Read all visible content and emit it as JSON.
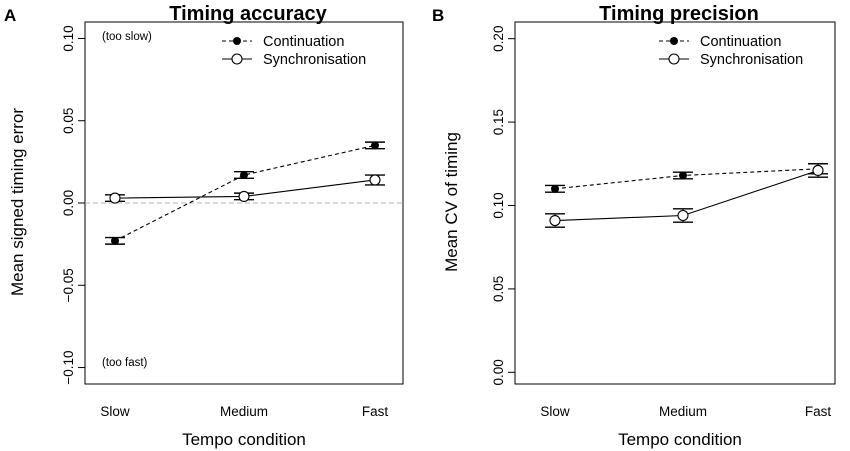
{
  "chart_data": [
    {
      "panel": "A",
      "type": "line",
      "title": "Timing accuracy",
      "xlabel": "Tempo condition",
      "ylabel": "Mean signed timing error",
      "categories": [
        "Slow",
        "Medium",
        "Fast"
      ],
      "ylim": [
        -0.11,
        0.11
      ],
      "yticks": [
        -0.1,
        -0.05,
        0.0,
        0.05,
        0.1
      ],
      "ytick_labels": [
        "−0.10",
        "−0.05",
        "0.00",
        "0.05",
        "0.10"
      ],
      "reference_line": 0.0,
      "annotations": {
        "top": "(too slow)",
        "bottom": "(too fast)"
      },
      "legend_position": "top-right",
      "series": [
        {
          "name": "Continuation",
          "style": "dashed",
          "marker": "filled",
          "values": [
            -0.023,
            0.017,
            0.035
          ],
          "errors": [
            0.002,
            0.002,
            0.002
          ]
        },
        {
          "name": "Synchronisation",
          "style": "solid",
          "marker": "open",
          "values": [
            0.003,
            0.004,
            0.014
          ],
          "errors": [
            0.002,
            0.002,
            0.003
          ]
        }
      ]
    },
    {
      "panel": "B",
      "type": "line",
      "title": "Timing precision",
      "xlabel": "Tempo condition",
      "ylabel": "Mean CV  of timing",
      "categories": [
        "Slow",
        "Medium",
        "Fast"
      ],
      "ylim": [
        -0.007,
        0.21
      ],
      "yticks": [
        0.0,
        0.05,
        0.1,
        0.15,
        0.2
      ],
      "ytick_labels": [
        "0.00",
        "0.05",
        "0.10",
        "0.15",
        "0.20"
      ],
      "legend_position": "top-right",
      "series": [
        {
          "name": "Continuation",
          "style": "dashed",
          "marker": "filled",
          "values": [
            0.11,
            0.118,
            0.122
          ],
          "errors": [
            0.002,
            0.002,
            0.003
          ]
        },
        {
          "name": "Synchronisation",
          "style": "solid",
          "marker": "open",
          "values": [
            0.091,
            0.094,
            0.121
          ],
          "errors": [
            0.004,
            0.004,
            0.004
          ]
        }
      ]
    }
  ]
}
